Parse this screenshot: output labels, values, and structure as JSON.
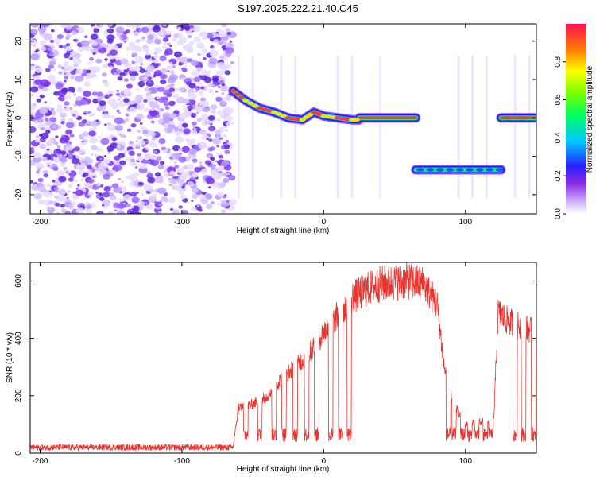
{
  "title": "S197.2025.222.21.40.C45",
  "chart_data": [
    {
      "type": "heatmap",
      "xlabel": "Height of straight line (km)",
      "ylabel": "Frequency (Hz)",
      "xlim": [
        -207,
        150
      ],
      "ylim": [
        -25,
        24.5
      ],
      "xticks": [
        -200,
        -100,
        0,
        100
      ],
      "yticks": [
        -20,
        -10,
        0,
        10,
        20
      ],
      "colorbar": {
        "label": "Normalized spectral amplitude",
        "range": [
          0,
          1
        ],
        "ticks": [
          "0.0",
          "0.2",
          "0.4",
          "0.6",
          "0.8"
        ],
        "tick_values": [
          0.0,
          0.2,
          0.4,
          0.6,
          0.8
        ]
      },
      "noise_region": {
        "x_from": -207,
        "x_to": -64
      },
      "tracks": [
        {
          "name": "descending arc",
          "x": [
            -64,
            -55,
            -45,
            -35,
            -25,
            -15,
            -7,
            0,
            10,
            20,
            25
          ],
          "y": [
            7,
            4.5,
            2.5,
            1.5,
            0,
            -0.5,
            1.5,
            0.5,
            0,
            -0.5,
            -0.5
          ]
        },
        {
          "name": "0 Hz line",
          "x": [
            25,
            65
          ],
          "y": [
            0,
            0
          ]
        },
        {
          "name": "-13.5 Hz line",
          "x": [
            65,
            125
          ],
          "y": [
            -13.5,
            -13.5
          ]
        },
        {
          "name": "0 Hz right line",
          "x": [
            125,
            150
          ],
          "y": [
            0,
            0
          ]
        }
      ]
    },
    {
      "type": "line",
      "xlabel": "Height of straight line (km)",
      "ylabel": "SNR (10 * v/v)",
      "xlim": [
        -207,
        150
      ],
      "ylim": [
        0,
        665
      ],
      "xticks": [
        -200,
        -100,
        0,
        100
      ],
      "yticks": [
        0,
        200,
        400,
        600
      ],
      "series": [
        {
          "name": "SNR",
          "color": "#e8332e",
          "profile_x": [
            -207,
            -64,
            -60,
            -50,
            -40,
            -30,
            -20,
            -10,
            0,
            10,
            20,
            30,
            40,
            50,
            60,
            70,
            80,
            85,
            90,
            95,
            100,
            110,
            120,
            123,
            130,
            140,
            150
          ],
          "profile_y": [
            20,
            20,
            160,
            170,
            200,
            260,
            300,
            350,
            420,
            480,
            540,
            570,
            590,
            595,
            600,
            590,
            520,
            300,
            200,
            140,
            100,
            110,
            120,
            490,
            460,
            440,
            420
          ]
        }
      ]
    }
  ]
}
